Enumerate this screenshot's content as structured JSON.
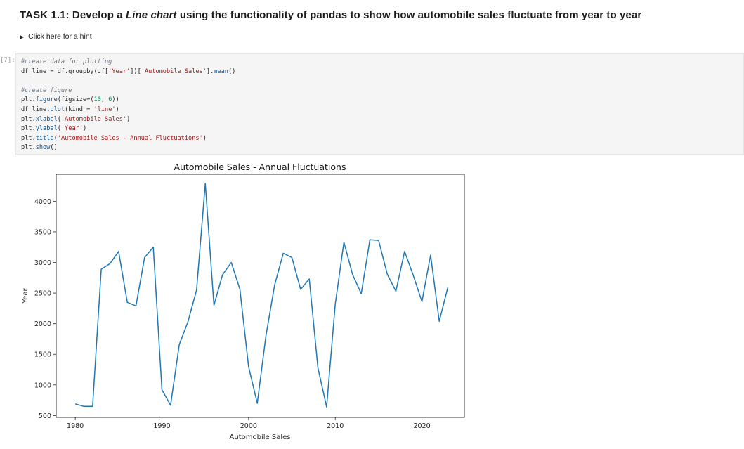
{
  "notebook": {
    "task_title": {
      "prefix": "TASK 1.1: Develop a ",
      "emphasis": "Line chart",
      "suffix": " using the functionality of pandas to show how automobile sales fluctuate from year to year"
    },
    "hint_label": "Click here for a hint",
    "execution_prompt": "[7]:",
    "code_lines": [
      [
        {
          "t": "#create data for plotting",
          "c": "com"
        }
      ],
      [
        {
          "t": "df_line = df.groupby(df[",
          "c": ""
        },
        {
          "t": "'Year'",
          "c": "str"
        },
        {
          "t": "])[",
          "c": ""
        },
        {
          "t": "'Automobile_Sales'",
          "c": "str"
        },
        {
          "t": "].",
          "c": ""
        },
        {
          "t": "mean",
          "c": "fn"
        },
        {
          "t": "()",
          "c": ""
        }
      ],
      [
        {
          "t": "",
          "c": ""
        }
      ],
      [
        {
          "t": "#create figure",
          "c": "com"
        }
      ],
      [
        {
          "t": "plt.",
          "c": ""
        },
        {
          "t": "figure",
          "c": "fn"
        },
        {
          "t": "(figsize=(",
          "c": ""
        },
        {
          "t": "10",
          "c": "num"
        },
        {
          "t": ", ",
          "c": ""
        },
        {
          "t": "6",
          "c": "num"
        },
        {
          "t": "))",
          "c": ""
        }
      ],
      [
        {
          "t": "df_line.",
          "c": ""
        },
        {
          "t": "plot",
          "c": "fn"
        },
        {
          "t": "(kind = ",
          "c": ""
        },
        {
          "t": "'line'",
          "c": "str"
        },
        {
          "t": ")",
          "c": ""
        }
      ],
      [
        {
          "t": "plt.",
          "c": ""
        },
        {
          "t": "xlabel",
          "c": "fn"
        },
        {
          "t": "(",
          "c": ""
        },
        {
          "t": "'Automobile Sales'",
          "c": "str"
        },
        {
          "t": ")",
          "c": ""
        }
      ],
      [
        {
          "t": "plt.",
          "c": ""
        },
        {
          "t": "ylabel",
          "c": "fn"
        },
        {
          "t": "(",
          "c": ""
        },
        {
          "t": "'Year'",
          "c": "str"
        },
        {
          "t": ")",
          "c": ""
        }
      ],
      [
        {
          "t": "plt.",
          "c": ""
        },
        {
          "t": "title",
          "c": "fn"
        },
        {
          "t": "(",
          "c": ""
        },
        {
          "t": "'Automobile Sales - Annual Fluctuations'",
          "c": "str"
        },
        {
          "t": ")",
          "c": ""
        }
      ],
      [
        {
          "t": "plt.",
          "c": ""
        },
        {
          "t": "show",
          "c": "fn"
        },
        {
          "t": "()",
          "c": ""
        }
      ]
    ]
  },
  "colors": {
    "line": "#1f77b4",
    "comment": "#6a737d",
    "string": "#a31515",
    "number": "#098658",
    "function": "#0b4f8a"
  },
  "chart_data": {
    "type": "line",
    "title": "Automobile Sales - Annual Fluctuations",
    "xlabel": "Automobile Sales",
    "ylabel": "Year",
    "xlim": [
      1977.8,
      2024.9
    ],
    "ylim": [
      470,
      4440
    ],
    "xticks": [
      1980,
      1990,
      2000,
      2010,
      2020
    ],
    "yticks": [
      500,
      1000,
      1500,
      2000,
      2500,
      3000,
      3500,
      4000
    ],
    "grid": false,
    "x": [
      1980,
      1981,
      1982,
      1983,
      1984,
      1985,
      1986,
      1987,
      1988,
      1989,
      1990,
      1991,
      1992,
      1993,
      1994,
      1995,
      1996,
      1997,
      1998,
      1999,
      2000,
      2001,
      2002,
      2003,
      2004,
      2005,
      2006,
      2007,
      2008,
      2009,
      2010,
      2011,
      2012,
      2013,
      2014,
      2015,
      2016,
      2017,
      2018,
      2019,
      2020,
      2021,
      2022,
      2023
    ],
    "y": [
      690,
      650,
      650,
      2890,
      2980,
      3180,
      2350,
      2290,
      3080,
      3250,
      920,
      670,
      1660,
      2030,
      2550,
      4290,
      2300,
      2800,
      3000,
      2560,
      1300,
      700,
      1800,
      2630,
      3150,
      3080,
      2560,
      2730,
      1280,
      640,
      2320,
      3330,
      2800,
      2490,
      3370,
      3360,
      2810,
      2530,
      3180,
      2790,
      2360,
      3120,
      2040,
      2600
    ]
  }
}
